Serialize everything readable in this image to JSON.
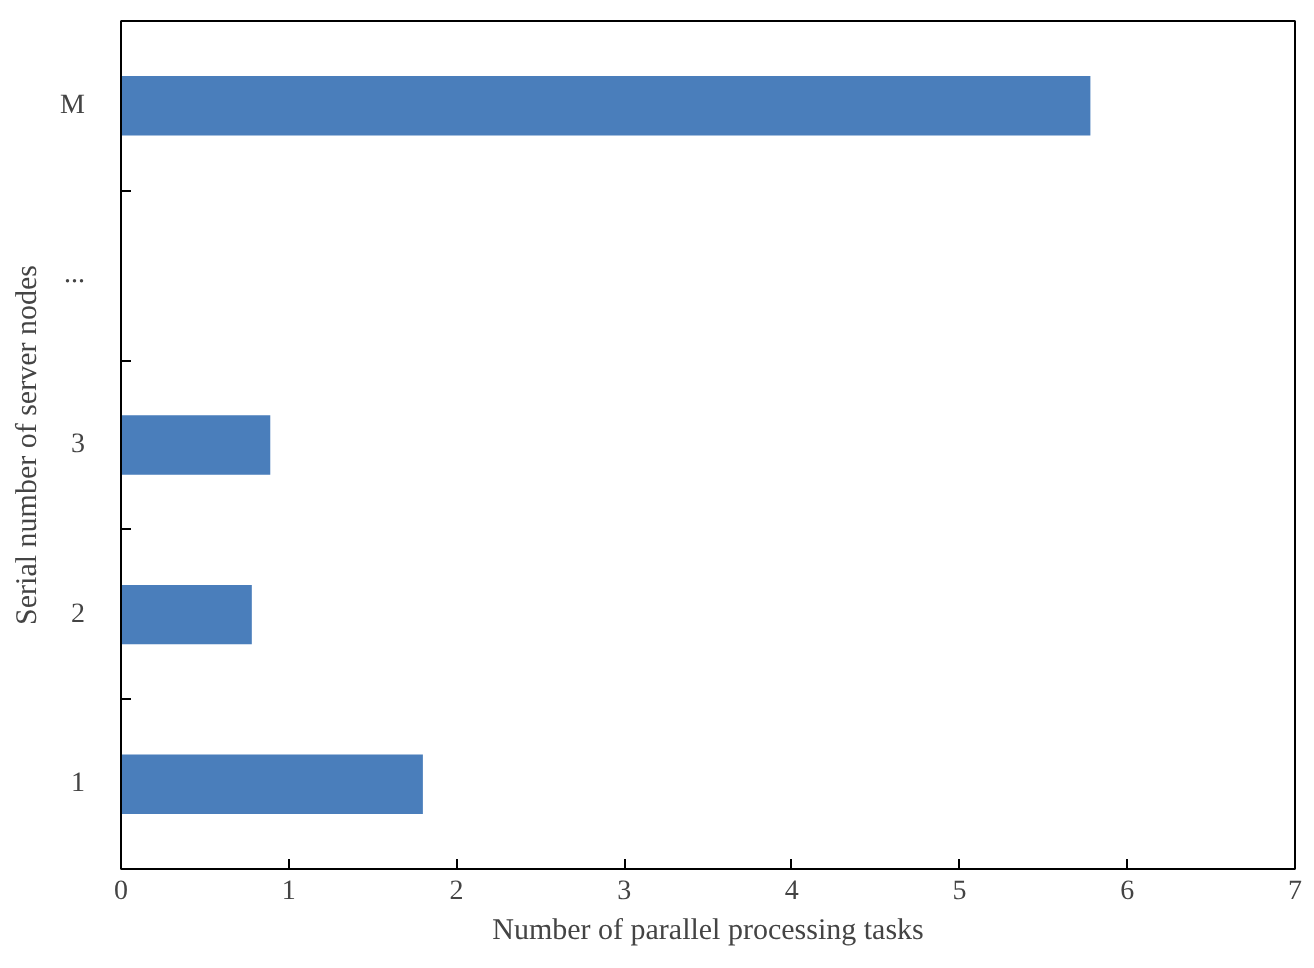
{
  "chart_data": {
    "type": "bar",
    "orientation": "horizontal",
    "xlabel": "Number of parallel processing tasks",
    "ylabel": "Serial number of server nodes",
    "categories": [
      "M",
      "...",
      "3",
      "2",
      "1"
    ],
    "values": [
      5.78,
      null,
      0.89,
      0.78,
      1.8
    ],
    "color": "#4a7ebb",
    "xlim": [
      0,
      7
    ],
    "xticks": [
      0,
      1,
      2,
      3,
      4,
      5,
      6,
      7
    ],
    "grid": false
  }
}
